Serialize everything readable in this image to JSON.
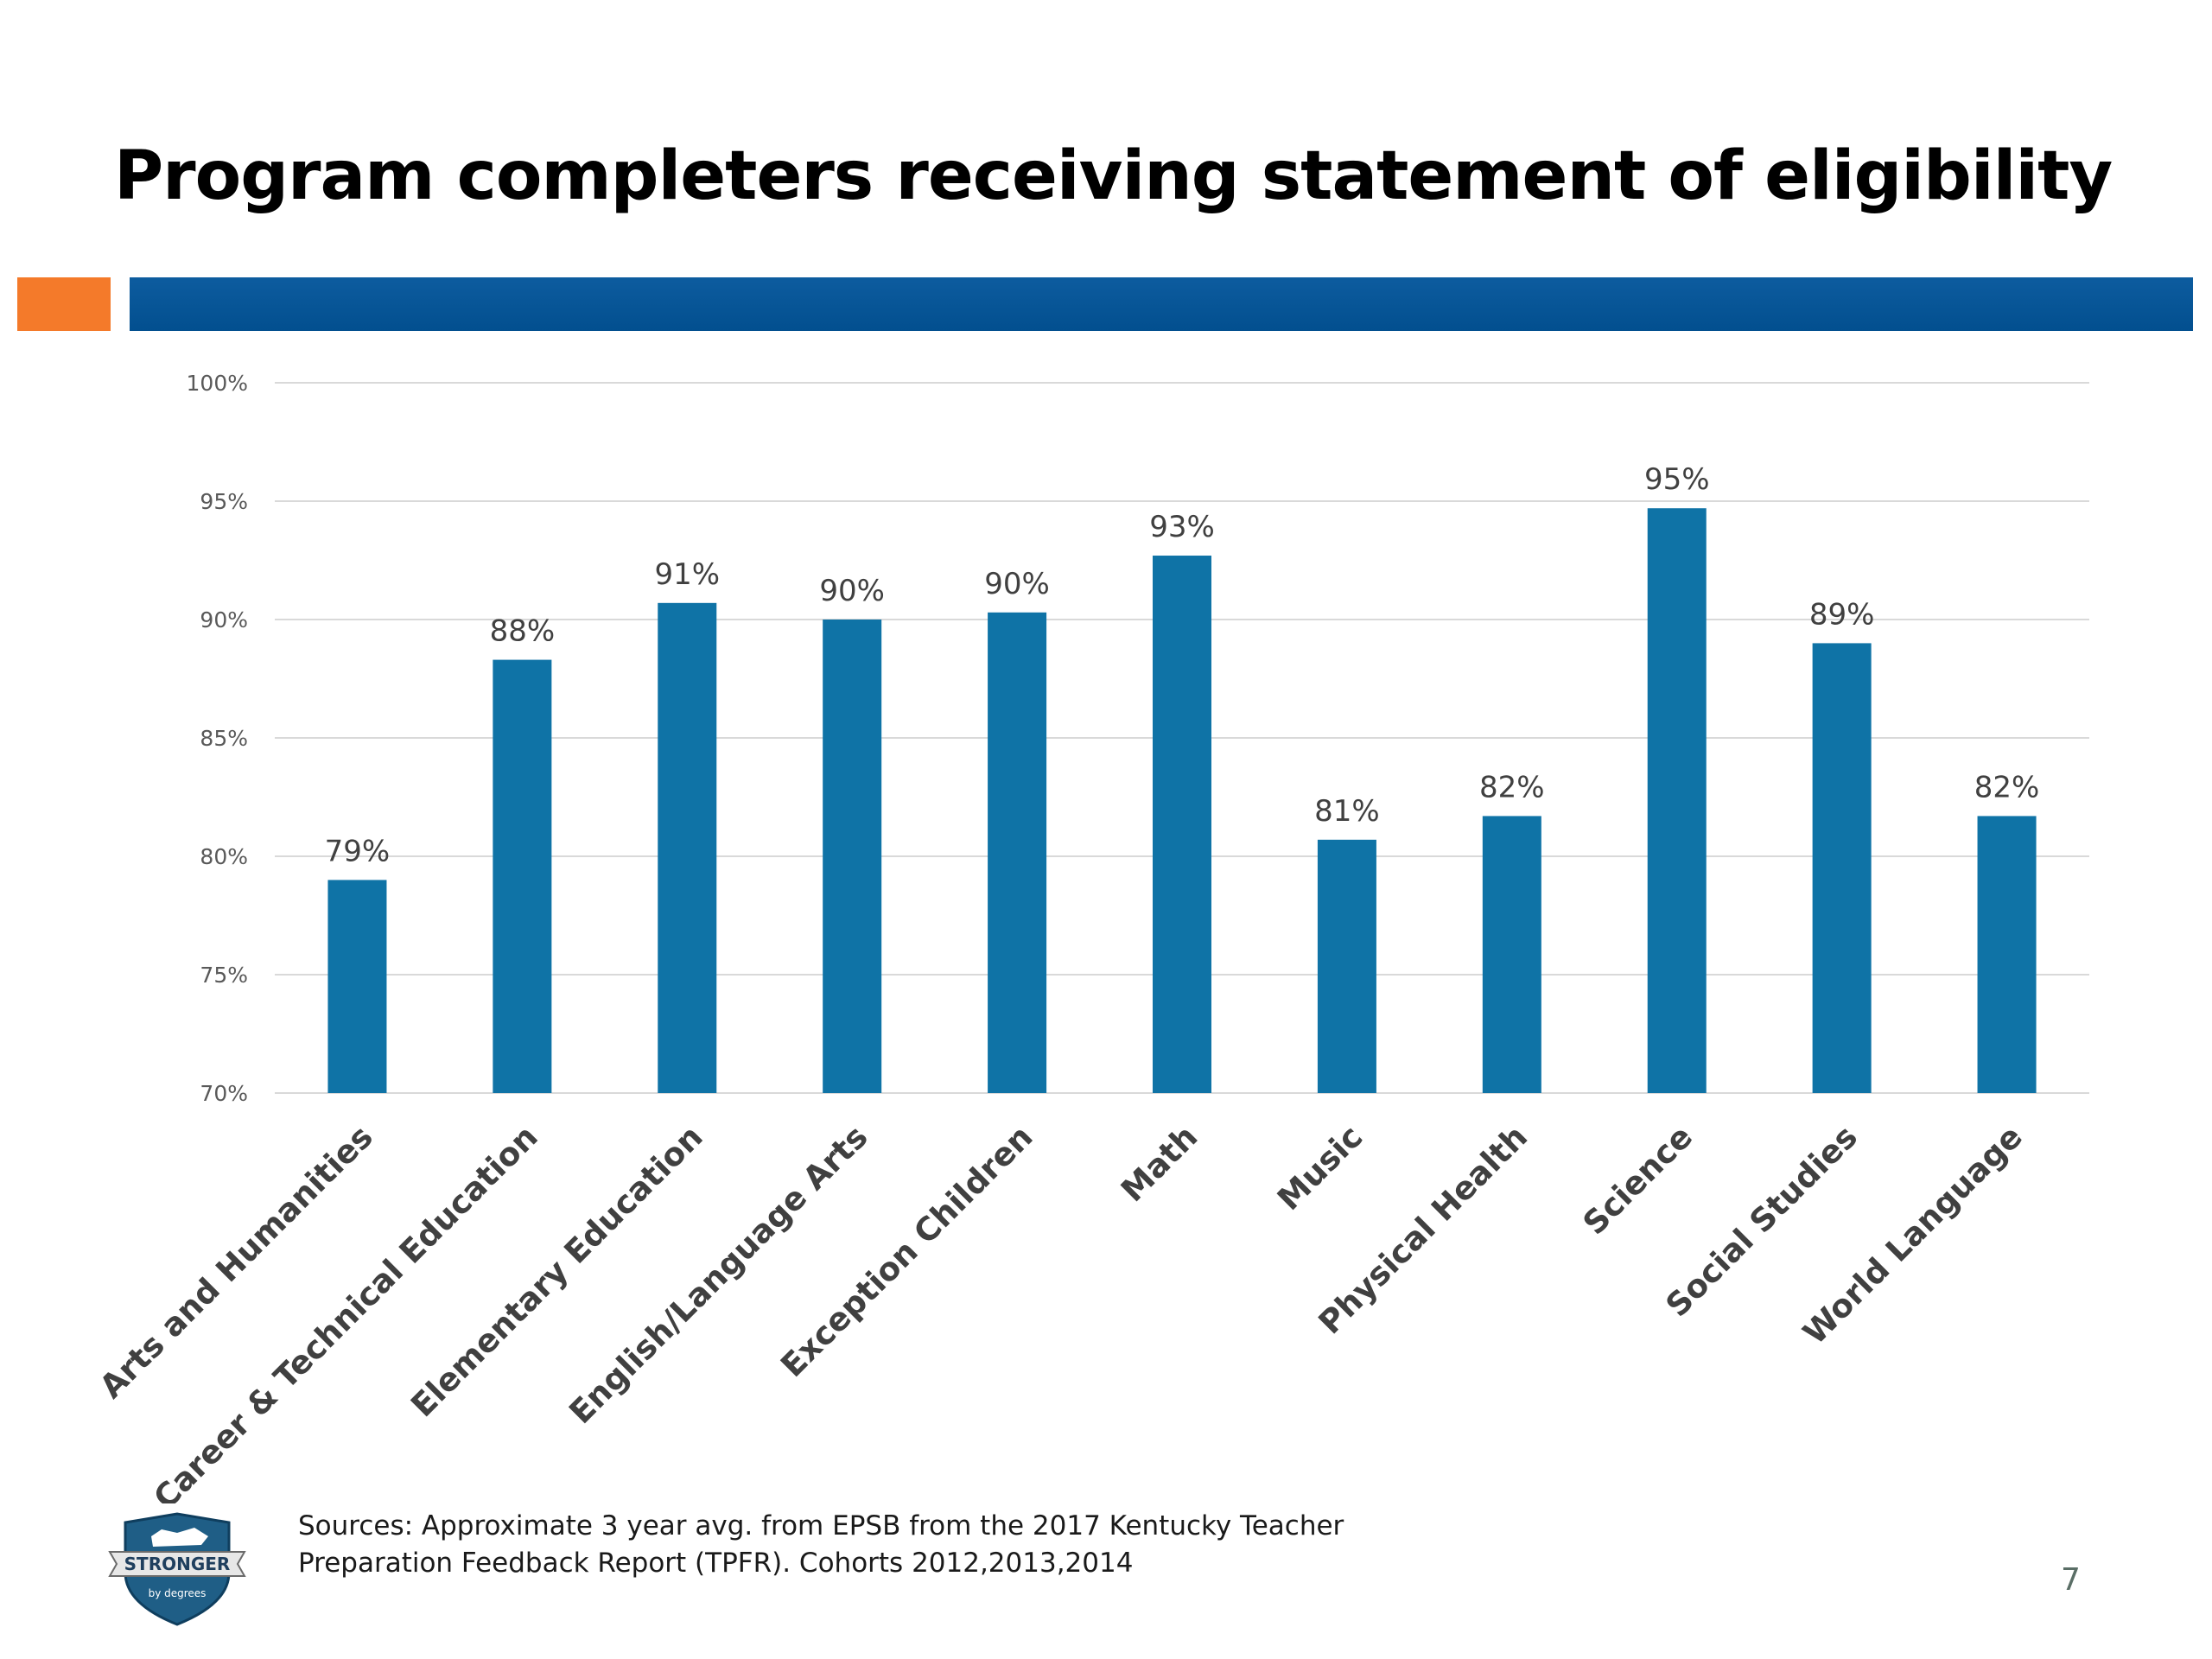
{
  "slide": {
    "title": "Program completers receiving statement of eligibility",
    "sources": "Sources:  Approximate 3 year avg. from EPSB from the 2017 Kentucky Teacher\nPreparation Feedback Report (TPFR). Cohorts 2012,2013,2014",
    "page_number": "7",
    "logo_text": "STRONGER",
    "logo_subtext": "by degrees"
  },
  "colors": {
    "accent_orange": "#f47a2a",
    "title_bar_blue": "#024f8f",
    "bar_blue": "#0f73a6",
    "gridline": "#d9d9d9",
    "tick_label": "#595959",
    "category_label": "#404040",
    "data_label": "#404040"
  },
  "chart_data": {
    "type": "bar",
    "title": "",
    "xlabel": "",
    "ylabel": "",
    "ylim": [
      70,
      100
    ],
    "y_ticks": [
      100,
      95,
      90,
      85,
      80,
      75,
      70
    ],
    "y_tick_labels": [
      "100%",
      "95%",
      "90%",
      "85%",
      "80%",
      "75%",
      "70%"
    ],
    "grid": true,
    "legend": "none",
    "categories": [
      "Arts and Humanities",
      "Career & Technical Education",
      "Elementary Education",
      "English/Language Arts",
      "Exception Children",
      "Math",
      "Music",
      "Physical Health",
      "Science",
      "Social Studies",
      "World Language"
    ],
    "values": [
      79,
      88.3,
      90.7,
      90,
      90.3,
      92.7,
      80.7,
      81.7,
      94.7,
      89,
      81.7
    ],
    "data_labels": [
      "79%",
      "88%",
      "91%",
      "90%",
      "90%",
      "93%",
      "81%",
      "82%",
      "95%",
      "89%",
      "82%"
    ]
  }
}
